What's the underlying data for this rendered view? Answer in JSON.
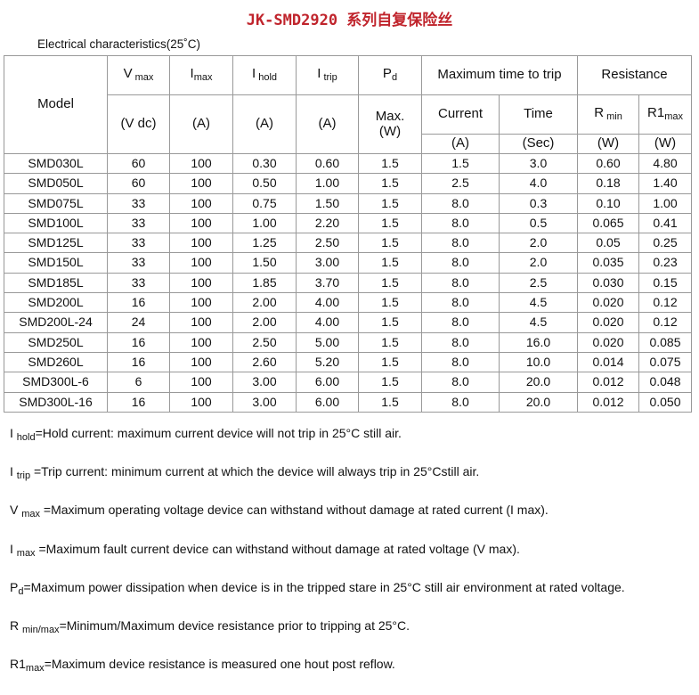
{
  "title": "JK-SMD2920 系列自复保险丝",
  "caption": "Electrical characteristics(25˚C)",
  "header": {
    "model": "Model",
    "vmax": {
      "main": "V",
      "sub": " max",
      "unit": "(V dc)"
    },
    "imax": {
      "main": "I",
      "sub": "max",
      "unit": "(A)"
    },
    "ihold": {
      "main": "I",
      "sub": " hold",
      "unit": "(A)"
    },
    "itrip": {
      "main": "I",
      "sub": " trip",
      "unit": "(A)"
    },
    "pd": {
      "main": "P",
      "sub": "d",
      "unit1": "Max.",
      "unit2": "(W)"
    },
    "time_to_trip": {
      "label": "Maximum time to trip",
      "current": "Current",
      "current_unit": "(A)",
      "time": "Time",
      "time_unit": "(Sec)"
    },
    "resistance": {
      "label": "Resistance",
      "rmin_main": "R",
      "rmin_sub": " min",
      "rmin_unit": "(W)",
      "r1max_main": "R1",
      "r1max_sub": "max",
      "r1max_unit": "(W)"
    }
  },
  "rows": [
    [
      "SMD030L",
      "60",
      "100",
      "0.30",
      "0.60",
      "1.5",
      "1.5",
      "3.0",
      "0.60",
      "4.80"
    ],
    [
      "SMD050L",
      "60",
      "100",
      "0.50",
      "1.00",
      "1.5",
      "2.5",
      "4.0",
      "0.18",
      "1.40"
    ],
    [
      "SMD075L",
      "33",
      "100",
      "0.75",
      "1.50",
      "1.5",
      "8.0",
      "0.3",
      "0.10",
      "1.00"
    ],
    [
      "SMD100L",
      "33",
      "100",
      "1.00",
      "2.20",
      "1.5",
      "8.0",
      "0.5",
      "0.065",
      "0.41"
    ],
    [
      "SMD125L",
      "33",
      "100",
      "1.25",
      "2.50",
      "1.5",
      "8.0",
      "2.0",
      "0.05",
      "0.25"
    ],
    [
      "SMD150L",
      "33",
      "100",
      "1.50",
      "3.00",
      "1.5",
      "8.0",
      "2.0",
      "0.035",
      "0.23"
    ],
    [
      "SMD185L",
      "33",
      "100",
      "1.85",
      "3.70",
      "1.5",
      "8.0",
      "2.5",
      "0.030",
      "0.15"
    ],
    [
      "SMD200L",
      "16",
      "100",
      "2.00",
      "4.00",
      "1.5",
      "8.0",
      "4.5",
      "0.020",
      "0.12"
    ],
    [
      "SMD200L-24",
      "24",
      "100",
      "2.00",
      "4.00",
      "1.5",
      "8.0",
      "4.5",
      "0.020",
      "0.12"
    ],
    [
      "SMD250L",
      "16",
      "100",
      "2.50",
      "5.00",
      "1.5",
      "8.0",
      "16.0",
      "0.020",
      "0.085"
    ],
    [
      "SMD260L",
      "16",
      "100",
      "2.60",
      "5.20",
      "1.5",
      "8.0",
      "10.0",
      "0.014",
      "0.075"
    ],
    [
      "SMD300L-6",
      "6",
      "100",
      "3.00",
      "6.00",
      "1.5",
      "8.0",
      "20.0",
      "0.012",
      "0.048"
    ],
    [
      "SMD300L-16",
      "16",
      "100",
      "3.00",
      "6.00",
      "1.5",
      "8.0",
      "20.0",
      "0.012",
      "0.050"
    ]
  ],
  "notes": [
    {
      "main": "I ",
      "sub": "hold",
      "text": "=Hold current: maximum current device will not trip in 25°C still air."
    },
    {
      "main": "I ",
      "sub": "trip",
      "text": " =Trip current: minimum current at which the device will always trip in 25°Cstill air."
    },
    {
      "main": "V ",
      "sub": "max",
      "text": " =Maximum operating voltage device can withstand without damage at rated current (I max)."
    },
    {
      "main": "I ",
      "sub": "max",
      "text": " =Maximum fault current device can withstand without damage at rated voltage (V max)."
    },
    {
      "main": "P",
      "sub": "d",
      "text": "=Maximum power dissipation when device is in the tripped stare in 25°C still air environment at rated voltage."
    },
    {
      "main": "R ",
      "sub": "min/max",
      "text": "=Minimum/Maximum device resistance prior to tripping at 25°C."
    },
    {
      "main": "R1",
      "sub": "max",
      "text": "=Maximum device resistance is measured one hout post reflow."
    }
  ]
}
